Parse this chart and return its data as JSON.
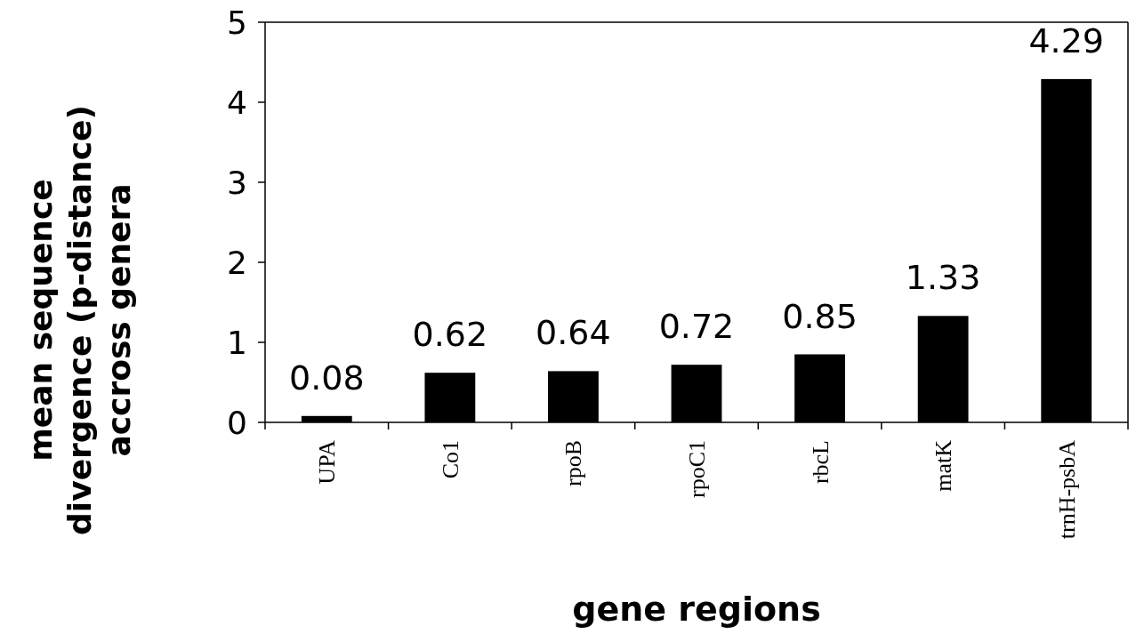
{
  "chart_data": {
    "type": "bar",
    "xlabel": "gene regions",
    "ylabel": "mean sequence\ndivergence (p-distance)\naccross genera",
    "categories": [
      "UPA",
      "Co1",
      "rpoB",
      "rpoC1",
      "rbcL",
      "matK",
      "trnH-psbA"
    ],
    "values": [
      0.08,
      0.62,
      0.64,
      0.72,
      0.85,
      1.33,
      4.29
    ],
    "color": "#000000",
    "ylim": [
      0,
      5
    ],
    "yticks": [
      0,
      1,
      2,
      3,
      4,
      5
    ],
    "data_labels": true,
    "grid": false
  }
}
